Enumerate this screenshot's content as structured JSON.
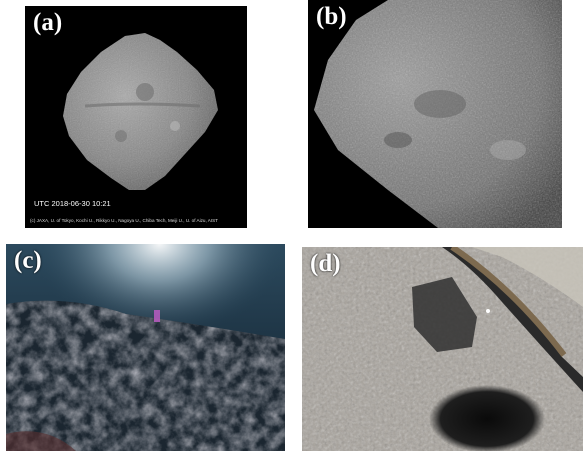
{
  "panels": [
    {
      "label": "(a)",
      "utc": "UTC 2018-06-30 10:21",
      "credit": "(c) JAXA, U. of Tokyo, Kochi U., Rikkyo U., Nagoya U., Chiba Tech, Meiji U., U. of Aizu, AIST"
    },
    {
      "label": "(b)"
    },
    {
      "label": "(c)"
    },
    {
      "label": "(d)"
    }
  ],
  "colors": {
    "asteroid": "#8a8a8a",
    "space": "#000000",
    "surface_blue": "#1e3b55",
    "surface_gray": "#a7a29b"
  }
}
